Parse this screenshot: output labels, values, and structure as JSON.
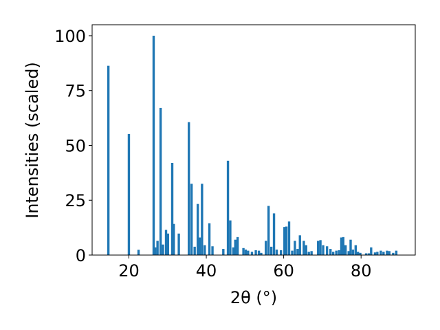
{
  "chart_data": {
    "type": "bar",
    "xlabel": "2θ (°)",
    "ylabel": "Intensities (scaled)",
    "xlim": [
      10.5,
      94.0
    ],
    "ylim": [
      0,
      105
    ],
    "xticks": [
      20,
      40,
      60,
      80
    ],
    "yticks": [
      0,
      25,
      50,
      75,
      100
    ],
    "bar_width": 0.6,
    "bar_color": "#1f77b4",
    "grid": false,
    "points": [
      {
        "x": 14.7,
        "y": 86.3
      },
      {
        "x": 20.0,
        "y": 55.2
      },
      {
        "x": 22.5,
        "y": 2.4
      },
      {
        "x": 26.4,
        "y": 100.0
      },
      {
        "x": 26.8,
        "y": 3.5
      },
      {
        "x": 27.4,
        "y": 6.5
      },
      {
        "x": 28.2,
        "y": 67.1
      },
      {
        "x": 28.8,
        "y": 4.8
      },
      {
        "x": 29.6,
        "y": 11.5
      },
      {
        "x": 30.1,
        "y": 9.8
      },
      {
        "x": 31.2,
        "y": 42.0
      },
      {
        "x": 31.6,
        "y": 14.2
      },
      {
        "x": 32.9,
        "y": 9.8
      },
      {
        "x": 35.5,
        "y": 60.6
      },
      {
        "x": 36.2,
        "y": 32.5
      },
      {
        "x": 37.0,
        "y": 3.8
      },
      {
        "x": 37.8,
        "y": 23.3
      },
      {
        "x": 38.3,
        "y": 8.0
      },
      {
        "x": 38.9,
        "y": 32.5
      },
      {
        "x": 39.6,
        "y": 4.5
      },
      {
        "x": 40.8,
        "y": 14.5
      },
      {
        "x": 41.6,
        "y": 4.0
      },
      {
        "x": 44.4,
        "y": 2.8
      },
      {
        "x": 45.6,
        "y": 43.0
      },
      {
        "x": 46.2,
        "y": 15.8
      },
      {
        "x": 47.0,
        "y": 3.5
      },
      {
        "x": 47.5,
        "y": 7.0
      },
      {
        "x": 48.1,
        "y": 8.2
      },
      {
        "x": 49.6,
        "y": 3.2
      },
      {
        "x": 50.2,
        "y": 2.5
      },
      {
        "x": 50.8,
        "y": 2.0
      },
      {
        "x": 51.8,
        "y": 1.5
      },
      {
        "x": 52.8,
        "y": 2.2
      },
      {
        "x": 53.6,
        "y": 2.0
      },
      {
        "x": 54.2,
        "y": 1.0
      },
      {
        "x": 55.4,
        "y": 6.5
      },
      {
        "x": 56.1,
        "y": 22.4
      },
      {
        "x": 56.8,
        "y": 3.8
      },
      {
        "x": 57.5,
        "y": 19.0
      },
      {
        "x": 58.2,
        "y": 2.5
      },
      {
        "x": 59.3,
        "y": 2.2
      },
      {
        "x": 60.2,
        "y": 12.8
      },
      {
        "x": 60.7,
        "y": 13.0
      },
      {
        "x": 61.4,
        "y": 15.3
      },
      {
        "x": 62.2,
        "y": 2.0
      },
      {
        "x": 62.9,
        "y": 6.5
      },
      {
        "x": 63.6,
        "y": 2.8
      },
      {
        "x": 64.2,
        "y": 9.0
      },
      {
        "x": 65.2,
        "y": 6.5
      },
      {
        "x": 65.8,
        "y": 4.5
      },
      {
        "x": 66.5,
        "y": 1.5
      },
      {
        "x": 67.2,
        "y": 1.8
      },
      {
        "x": 68.9,
        "y": 6.5
      },
      {
        "x": 69.5,
        "y": 6.8
      },
      {
        "x": 70.2,
        "y": 4.5
      },
      {
        "x": 71.2,
        "y": 4.0
      },
      {
        "x": 72.1,
        "y": 2.8
      },
      {
        "x": 72.8,
        "y": 1.5
      },
      {
        "x": 73.6,
        "y": 2.0
      },
      {
        "x": 74.3,
        "y": 2.2
      },
      {
        "x": 74.9,
        "y": 8.0
      },
      {
        "x": 75.4,
        "y": 8.2
      },
      {
        "x": 76.0,
        "y": 4.5
      },
      {
        "x": 76.8,
        "y": 1.8
      },
      {
        "x": 77.3,
        "y": 7.0
      },
      {
        "x": 77.9,
        "y": 2.5
      },
      {
        "x": 78.6,
        "y": 4.5
      },
      {
        "x": 79.2,
        "y": 1.5
      },
      {
        "x": 79.8,
        "y": 1.0
      },
      {
        "x": 81.3,
        "y": 0.8
      },
      {
        "x": 82.0,
        "y": 0.8
      },
      {
        "x": 82.6,
        "y": 3.5
      },
      {
        "x": 83.6,
        "y": 1.2
      },
      {
        "x": 84.2,
        "y": 1.5
      },
      {
        "x": 85.1,
        "y": 2.0
      },
      {
        "x": 85.8,
        "y": 1.5
      },
      {
        "x": 86.7,
        "y": 2.0
      },
      {
        "x": 87.3,
        "y": 1.8
      },
      {
        "x": 88.3,
        "y": 1.0
      },
      {
        "x": 89.1,
        "y": 2.0
      }
    ]
  }
}
